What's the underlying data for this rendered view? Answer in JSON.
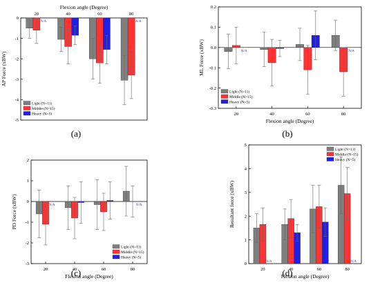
{
  "colors": {
    "light": "#7f7f7f",
    "middle": "#ff3333",
    "heavy": "#1f1fe6",
    "na": "#3b3bd6",
    "frame": "#000000",
    "error_bar": "#666666"
  },
  "chart_data": [
    {
      "type": "bar",
      "panel_label": "(a)",
      "title": "",
      "xlabel": "Flexion angle (Degree)",
      "xlabel_position": "top",
      "ylabel": "AP Force (xBW)",
      "categories": [
        "20",
        "40",
        "60",
        "80"
      ],
      "ylim": [
        -5,
        0
      ],
      "yticks": [
        "-5",
        "-4",
        "-3",
        "-2",
        "-1",
        "0"
      ],
      "ytick_values": [
        -5,
        -4,
        -3,
        -2,
        -1,
        0
      ],
      "legend_position": "bottom-left",
      "series": [
        {
          "name": "Light (N=11)",
          "values": [
            -0.5,
            -1.05,
            -2.0,
            -3.05
          ],
          "errors": [
            0.5,
            0.6,
            1.0,
            1.2
          ]
        },
        {
          "name": "Middle (N=15)",
          "values": [
            -0.6,
            -1.4,
            -2.2,
            -2.8
          ],
          "errors": [
            0.65,
            0.85,
            1.0,
            1.15
          ]
        },
        {
          "name": "Heavy (N=5)",
          "values": [
            null,
            -0.85,
            -1.55,
            null
          ],
          "errors": [
            null,
            0.45,
            0.7,
            null
          ]
        }
      ],
      "na_label": "N/A"
    },
    {
      "type": "bar",
      "panel_label": "(b)",
      "title": "",
      "xlabel": "Flexion angle (Degree)",
      "xlabel_position": "bottom",
      "ylabel": "ML Force (xBW)",
      "categories": [
        "20",
        "40",
        "60",
        "80"
      ],
      "ylim": [
        -0.3,
        0.2
      ],
      "yticks": [
        "-0.3",
        "-0.2",
        "-0.1",
        "0.0",
        "0.1",
        "0.2"
      ],
      "ytick_values": [
        -0.3,
        -0.2,
        -0.1,
        0.0,
        0.1,
        0.2
      ],
      "legend_position": "bottom-left",
      "series": [
        {
          "name": "Light (N=11)",
          "values": [
            -0.02,
            -0.01,
            0.015,
            0.06
          ],
          "errors": [
            0.085,
            0.085,
            0.08,
            0.075
          ]
        },
        {
          "name": "Middle (N=15)",
          "values": [
            0.01,
            -0.075,
            -0.11,
            -0.12
          ],
          "errors": [
            0.09,
            0.115,
            0.12,
            0.12
          ]
        },
        {
          "name": "Heavy (N=5)",
          "values": [
            null,
            -0.005,
            0.06,
            null
          ],
          "errors": [
            null,
            0.04,
            0.12,
            null
          ]
        }
      ],
      "na_label": "N/A"
    },
    {
      "type": "bar",
      "panel_label": "(c)",
      "title": "",
      "xlabel": "Flexion angle (Degree)",
      "xlabel_position": "bottom",
      "ylabel": "PD Force (xBW)",
      "categories": [
        "20",
        "40",
        "60",
        "80"
      ],
      "ylim": [
        -3,
        2
      ],
      "yticks": [
        "-3",
        "-2",
        "-1",
        "0",
        "1",
        "2"
      ],
      "ytick_values": [
        -3,
        -2,
        -1,
        0,
        1,
        2
      ],
      "legend_position": "bottom-right",
      "series": [
        {
          "name": "Light (N=11)",
          "values": [
            -0.6,
            -0.3,
            -0.15,
            0.5
          ],
          "errors": [
            1.15,
            1.05,
            1.2,
            1.2
          ]
        },
        {
          "name": "Middle (N=15)",
          "values": [
            -1.1,
            -0.8,
            -0.5,
            0.0
          ],
          "errors": [
            1.0,
            1.0,
            0.9,
            0.75
          ]
        },
        {
          "name": "Heavy (N=5)",
          "values": [
            null,
            -0.05,
            0.05,
            null
          ],
          "errors": [
            null,
            1.0,
            0.9,
            null
          ]
        }
      ],
      "na_label": "N/A"
    },
    {
      "type": "bar",
      "panel_label": "(d)",
      "title": "",
      "xlabel": "Flexion angle (Degree)",
      "xlabel_position": "bottom",
      "ylabel": "Resultant force (xBW)",
      "categories": [
        "20",
        "40",
        "60",
        "80"
      ],
      "ylim": [
        0,
        5
      ],
      "yticks": [
        "0",
        "1",
        "2",
        "3",
        "4",
        "5"
      ],
      "ytick_values": [
        0,
        1,
        2,
        3,
        4,
        5
      ],
      "legend_position": "top-right",
      "series": [
        {
          "name": "Light (N=11)",
          "values": [
            1.5,
            1.65,
            2.3,
            3.3
          ],
          "errors": [
            0.6,
            0.65,
            1.0,
            1.2
          ]
        },
        {
          "name": "Middle (N=15)",
          "values": [
            1.65,
            1.9,
            2.4,
            2.95
          ],
          "errors": [
            0.7,
            0.8,
            0.9,
            1.1
          ]
        },
        {
          "name": "Heavy (N=5)",
          "values": [
            null,
            1.3,
            1.75,
            null
          ],
          "errors": [
            null,
            0.35,
            0.6,
            null
          ]
        }
      ],
      "na_label": "N/A"
    }
  ]
}
